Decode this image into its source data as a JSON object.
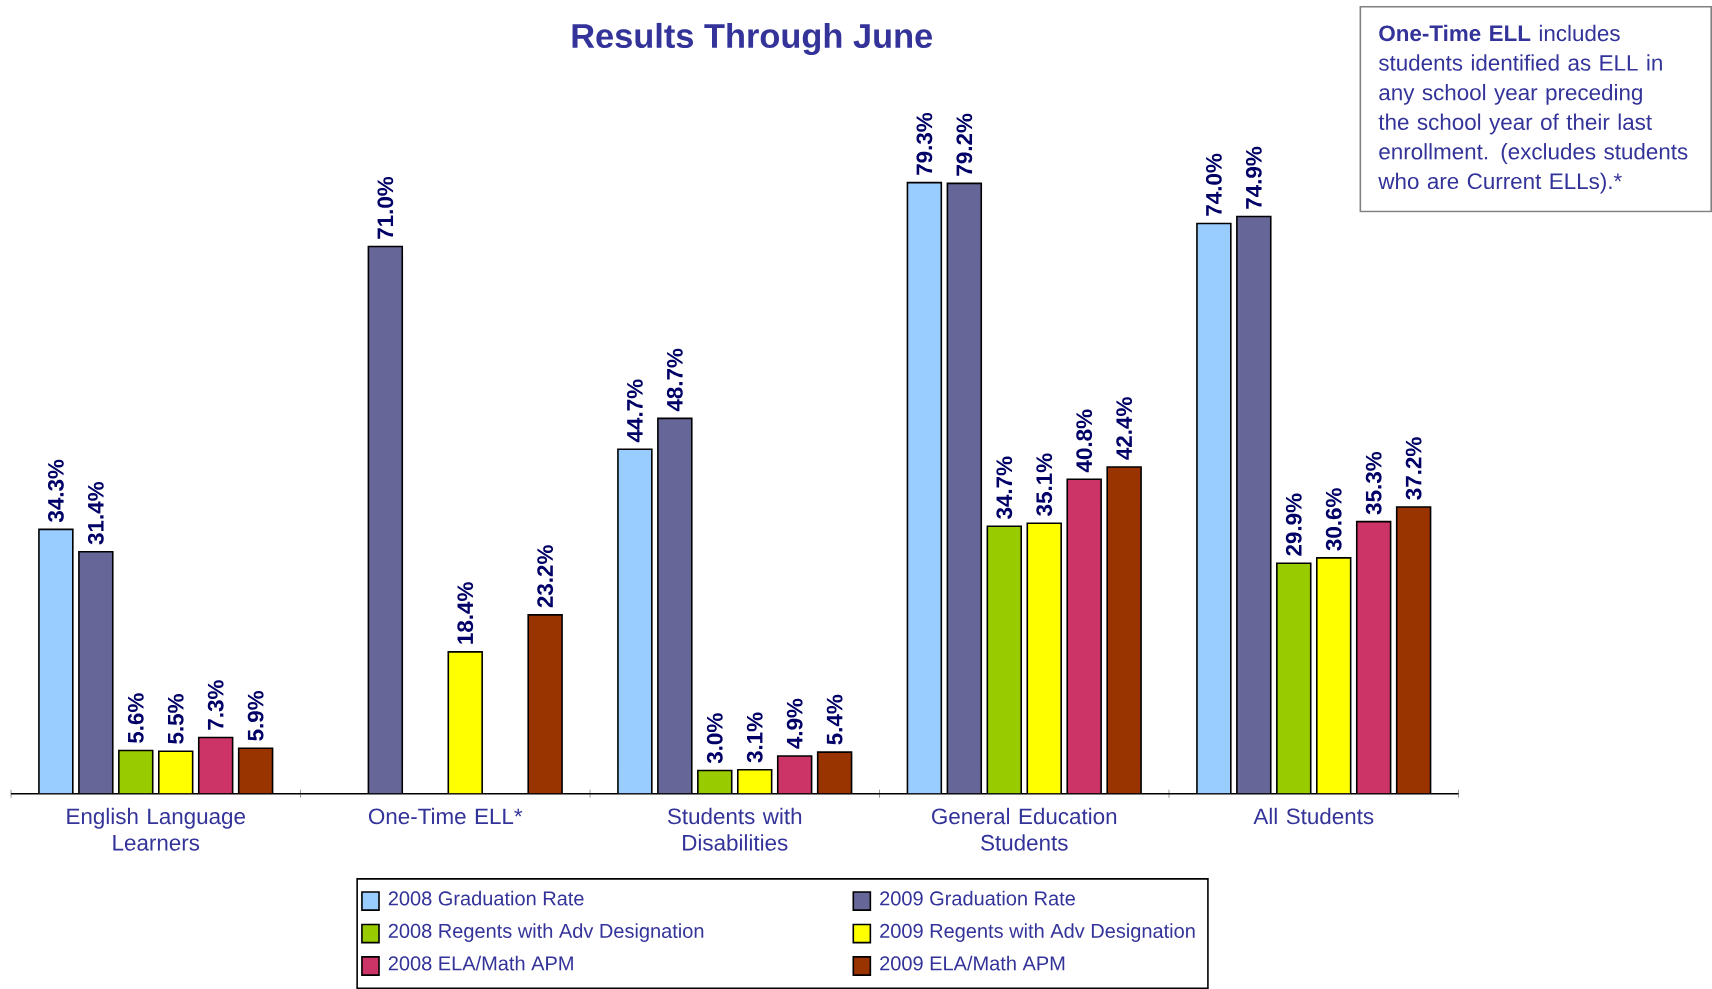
{
  "chart_data": {
    "type": "bar",
    "title": "Results Through June",
    "categories": [
      "English Language Learners",
      "One-Time ELL*",
      "Students with Disabilities",
      "General Education Students",
      "All Students"
    ],
    "series": [
      {
        "name": "2008 Graduation Rate",
        "color": "#99ccff",
        "values": [
          34.3,
          null,
          44.7,
          79.3,
          74.0
        ],
        "value_labels": [
          "34.3%",
          null,
          "44.7%",
          "79.3%",
          "74.0%"
        ]
      },
      {
        "name": "2009 Graduation Rate",
        "color": "#666699",
        "values": [
          31.4,
          71.0,
          48.7,
          79.2,
          74.9
        ],
        "value_labels": [
          "31.4%",
          "71.0%",
          "48.7%",
          "79.2%",
          "74.9%"
        ]
      },
      {
        "name": "2008 Regents with Adv Designation",
        "color": "#99cc00",
        "values": [
          5.6,
          null,
          3.0,
          34.7,
          29.9
        ],
        "value_labels": [
          "5.6%",
          null,
          "3.0%",
          "34.7%",
          "29.9%"
        ]
      },
      {
        "name": "2009 Regents with Adv Designation",
        "color": "#ffff00",
        "values": [
          5.5,
          18.4,
          3.1,
          35.1,
          30.6
        ],
        "value_labels": [
          "5.5%",
          "18.4%",
          "3.1%",
          "35.1%",
          "30.6%"
        ]
      },
      {
        "name": "2008 ELA/Math APM",
        "color": "#cc3366",
        "values": [
          7.3,
          null,
          4.9,
          40.8,
          35.3
        ],
        "value_labels": [
          "7.3%",
          null,
          "4.9%",
          "40.8%",
          "35.3%"
        ]
      },
      {
        "name": "2009 ELA/Math APM",
        "color": "#993300",
        "values": [
          5.9,
          23.2,
          5.4,
          42.4,
          37.2
        ],
        "value_labels": [
          "5.9%",
          "23.2%",
          "5.4%",
          "42.4%",
          "37.2%"
        ]
      }
    ],
    "legend": "bottom",
    "annotations": [
      "**One-Time ELL** includes students identified as ELL in any school year preceding the school year of their last enrollment. (excludes students who are Current ELLs).*"
    ]
  }
}
